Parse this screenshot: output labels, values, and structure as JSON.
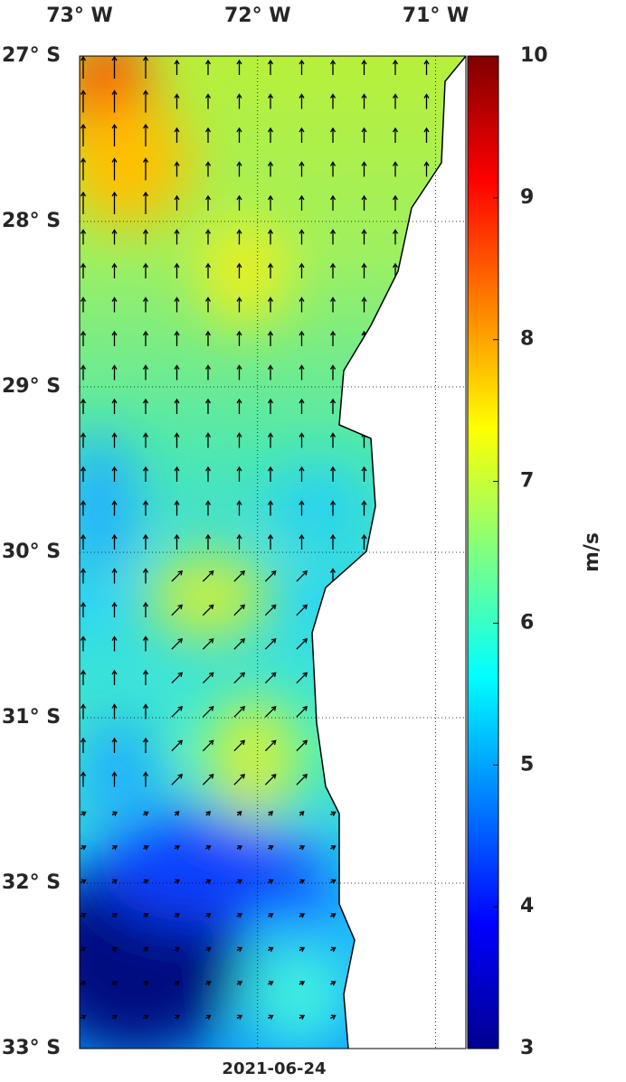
{
  "map": {
    "lonlim": [
      -73,
      -70.83
    ],
    "latlim": [
      -33,
      -27
    ],
    "lon_ticks": [
      {
        "value": -73,
        "label": "73° W"
      },
      {
        "value": -72,
        "label": "72° W"
      },
      {
        "value": -71,
        "label": "71° W"
      }
    ],
    "lat_ticks": [
      {
        "value": -27,
        "label": "27° S"
      },
      {
        "value": -28,
        "label": "28° S"
      },
      {
        "value": -29,
        "label": "29° S"
      },
      {
        "value": -30,
        "label": "30° S"
      },
      {
        "value": -31,
        "label": "31° S"
      },
      {
        "value": -32,
        "label": "32° S"
      },
      {
        "value": -33,
        "label": "33° S"
      }
    ],
    "colorbar": {
      "label": "m/s",
      "lim": [
        3,
        10
      ],
      "ticks": [
        3,
        4,
        5,
        6,
        7,
        8,
        9,
        10
      ]
    },
    "date": "2021-06-24"
  }
}
